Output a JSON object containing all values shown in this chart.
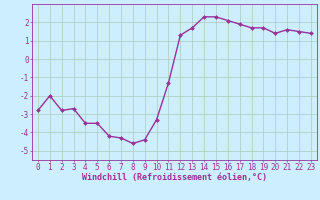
{
  "x": [
    0,
    1,
    2,
    3,
    4,
    5,
    6,
    7,
    8,
    9,
    10,
    11,
    12,
    13,
    14,
    15,
    16,
    17,
    18,
    19,
    20,
    21,
    22,
    23
  ],
  "y": [
    -2.8,
    -2.0,
    -2.8,
    -2.7,
    -3.5,
    -3.5,
    -4.2,
    -4.3,
    -4.6,
    -4.4,
    -3.3,
    -1.3,
    1.3,
    1.7,
    2.3,
    2.3,
    2.1,
    1.9,
    1.7,
    1.7,
    1.4,
    1.6,
    1.5,
    1.4
  ],
  "line_color": "#993399",
  "marker": "D",
  "marker_size": 2.0,
  "line_width": 1.0,
  "bg_color": "#cceeff",
  "grid_color": "#aaccbb",
  "xlabel": "Windchill (Refroidissement éolien,°C)",
  "xlabel_color": "#993399",
  "xlabel_fontsize": 6.0,
  "tick_color": "#993399",
  "tick_fontsize": 5.5,
  "xlim": [
    -0.5,
    23.5
  ],
  "ylim": [
    -5.5,
    3.0
  ],
  "yticks": [
    -5,
    -4,
    -3,
    -2,
    -1,
    0,
    1,
    2
  ],
  "xticks": [
    0,
    1,
    2,
    3,
    4,
    5,
    6,
    7,
    8,
    9,
    10,
    11,
    12,
    13,
    14,
    15,
    16,
    17,
    18,
    19,
    20,
    21,
    22,
    23
  ]
}
